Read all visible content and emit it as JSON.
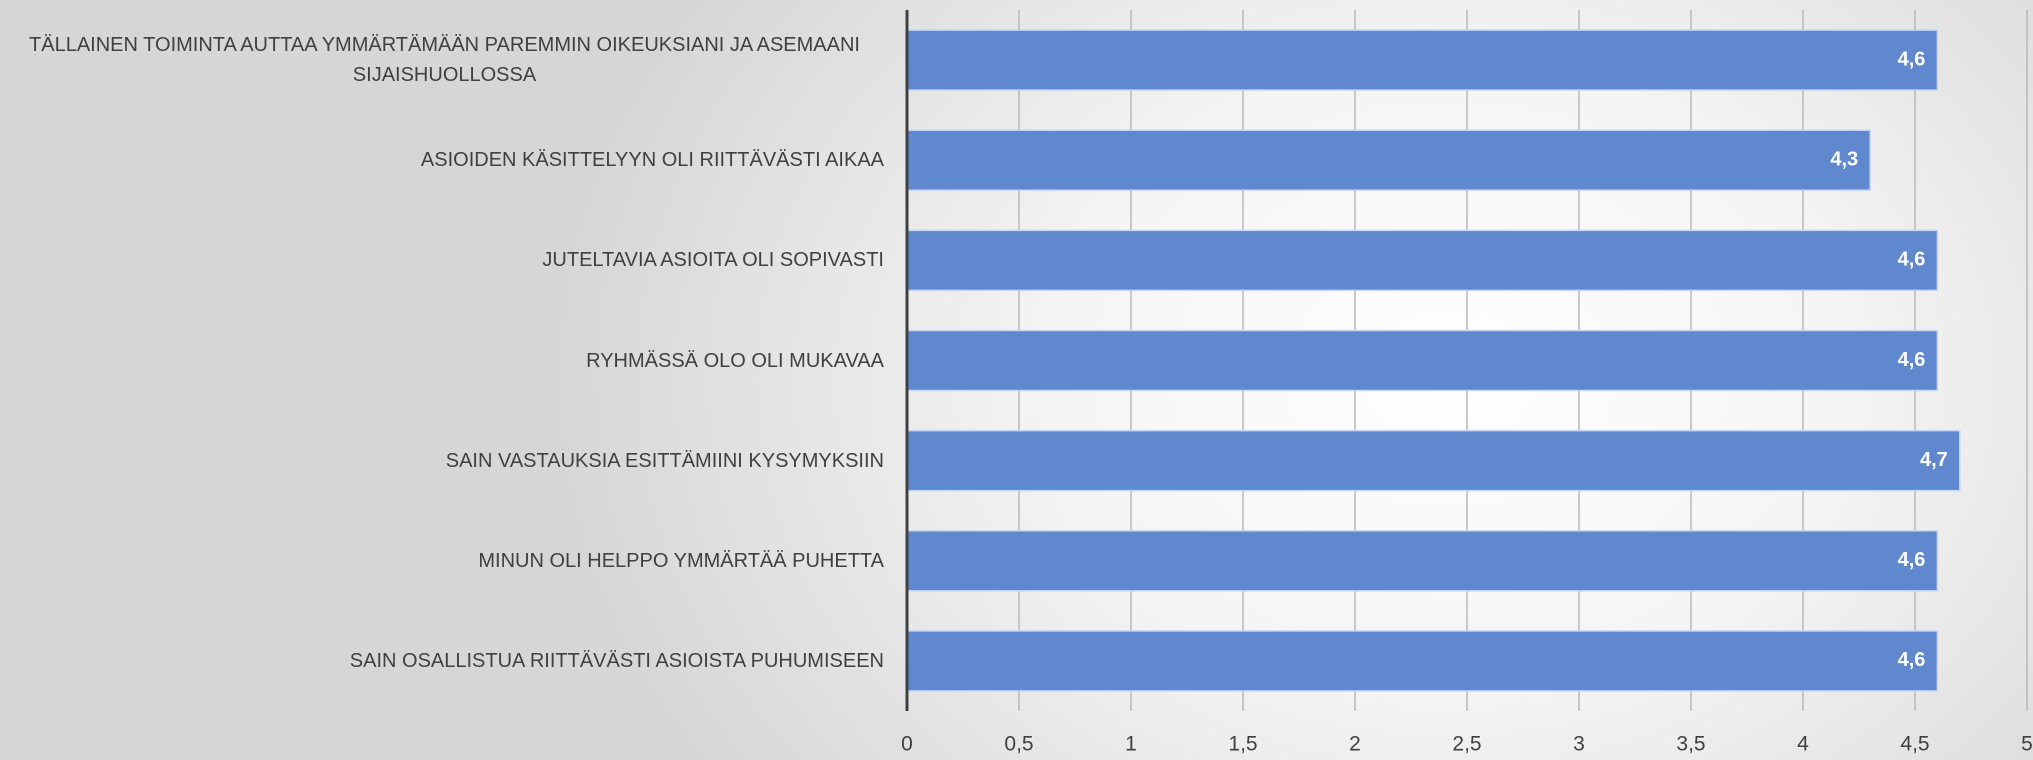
{
  "chart_data": {
    "type": "bar",
    "orientation": "horizontal",
    "categories": [
      "TÄLLAINEN TOIMINTA AUTTAA YMMÄRTÄMÄÄN PAREMMIN OIKEUKSIANI JA ASEMAANI SIJAISHUOLLOSSA",
      "ASIOIDEN KÄSITTELYYN OLI RIITTÄVÄSTI AIKAA",
      "JUTELTAVIA ASIOITA OLI SOPIVASTI",
      "RYHMÄSSÄ OLO OLI MUKAVAA",
      "SAIN VASTAUKSIA ESITTÄMIINI KYSYMYKSIIN",
      "MINUN OLI HELPPO YMMÄRTÄÄ PUHETTA",
      "SAIN OSALLISTUA RIITTÄVÄSTI ASIOISTA PUHUMISEEN"
    ],
    "values": [
      4.6,
      4.3,
      4.6,
      4.6,
      4.7,
      4.6,
      4.6
    ],
    "value_labels": [
      "4,6",
      "4,3",
      "4,6",
      "4,6",
      "4,7",
      "4,6",
      "4,6"
    ],
    "color": "#6088cf",
    "xlim": [
      0,
      5
    ],
    "xticks": [
      0,
      {
        "value": 0.5,
        "label": "0,5"
      },
      1,
      {
        "value": 1.5,
        "label": "1,5"
      },
      2,
      {
        "value": 2.5,
        "label": "2,5"
      },
      3,
      {
        "value": 3.5,
        "label": "3,5"
      },
      4,
      {
        "value": 4.5,
        "label": "4,5"
      },
      5
    ],
    "grid": true
  }
}
